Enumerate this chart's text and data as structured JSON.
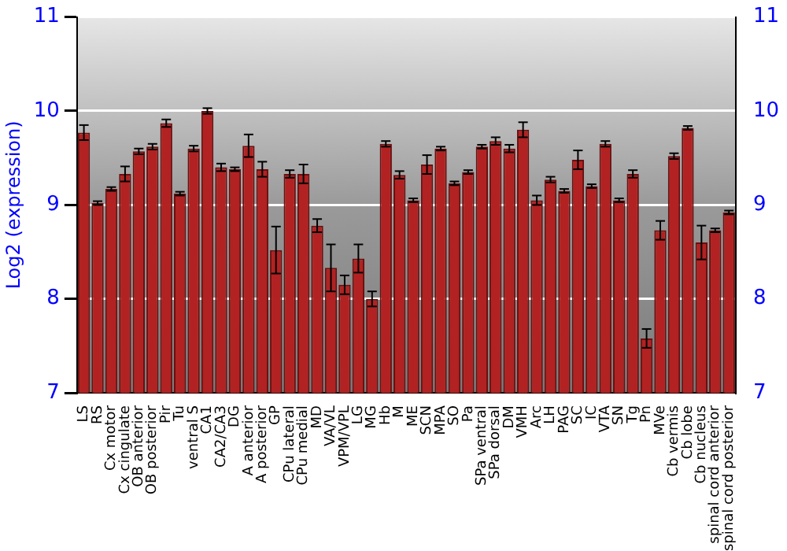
{
  "chart_data": {
    "type": "bar",
    "ylabel": "Log2 (expression)",
    "categories": [
      "LS",
      "RS",
      "Cx motor",
      "Cx cingulate",
      "OB anterior",
      "OB posterior",
      "Pir",
      "Tu",
      "ventral S",
      "CA1",
      "CA2/CA3",
      "DG",
      "A anterior",
      "A posterior",
      "GP",
      "CPu lateral",
      "CPu medial",
      "MD",
      "VA/VL",
      "VPM/VPL",
      "LG",
      "MG",
      "Hb",
      "M",
      "ME",
      "SCN",
      "MPA",
      "SO",
      "Pa",
      "SPa ventral",
      "SPa dorsal",
      "DM",
      "VMH",
      "Arc",
      "LH",
      "PAG",
      "SC",
      "IC",
      "VTA",
      "SN",
      "Tg",
      "Pn",
      "MVe",
      "Cb vermis",
      "Cb lobe",
      "Cb nucleus",
      "spinal cord anterior",
      "spinal cord posterior"
    ],
    "values": [
      9.77,
      9.02,
      9.17,
      9.33,
      9.57,
      9.62,
      9.87,
      9.12,
      9.6,
      10.0,
      9.4,
      9.38,
      9.63,
      9.38,
      8.52,
      9.33,
      9.33,
      8.78,
      8.33,
      8.15,
      8.43,
      8.0,
      9.65,
      9.32,
      9.05,
      9.43,
      9.6,
      9.23,
      9.35,
      9.62,
      9.68,
      9.6,
      9.8,
      9.05,
      9.27,
      9.15,
      9.48,
      9.2,
      9.65,
      9.05,
      9.33,
      7.58,
      8.73,
      9.52,
      9.82,
      8.6,
      8.73,
      8.92
    ],
    "errors": [
      0.08,
      0.02,
      0.02,
      0.08,
      0.03,
      0.03,
      0.04,
      0.02,
      0.03,
      0.03,
      0.04,
      0.02,
      0.12,
      0.08,
      0.25,
      0.04,
      0.1,
      0.07,
      0.25,
      0.1,
      0.15,
      0.08,
      0.03,
      0.04,
      0.02,
      0.1,
      0.02,
      0.02,
      0.02,
      0.02,
      0.04,
      0.04,
      0.08,
      0.05,
      0.03,
      0.02,
      0.1,
      0.02,
      0.03,
      0.02,
      0.04,
      0.1,
      0.1,
      0.03,
      0.02,
      0.18,
      0.02,
      0.02
    ],
    "color": "#b22222",
    "ylim": [
      7,
      11
    ],
    "yticks": [
      7,
      8,
      9,
      10,
      11
    ],
    "y2lim": [
      7,
      11
    ],
    "y2ticks": [
      7,
      8,
      9,
      10,
      11
    ],
    "grid": "y",
    "legend": false
  }
}
